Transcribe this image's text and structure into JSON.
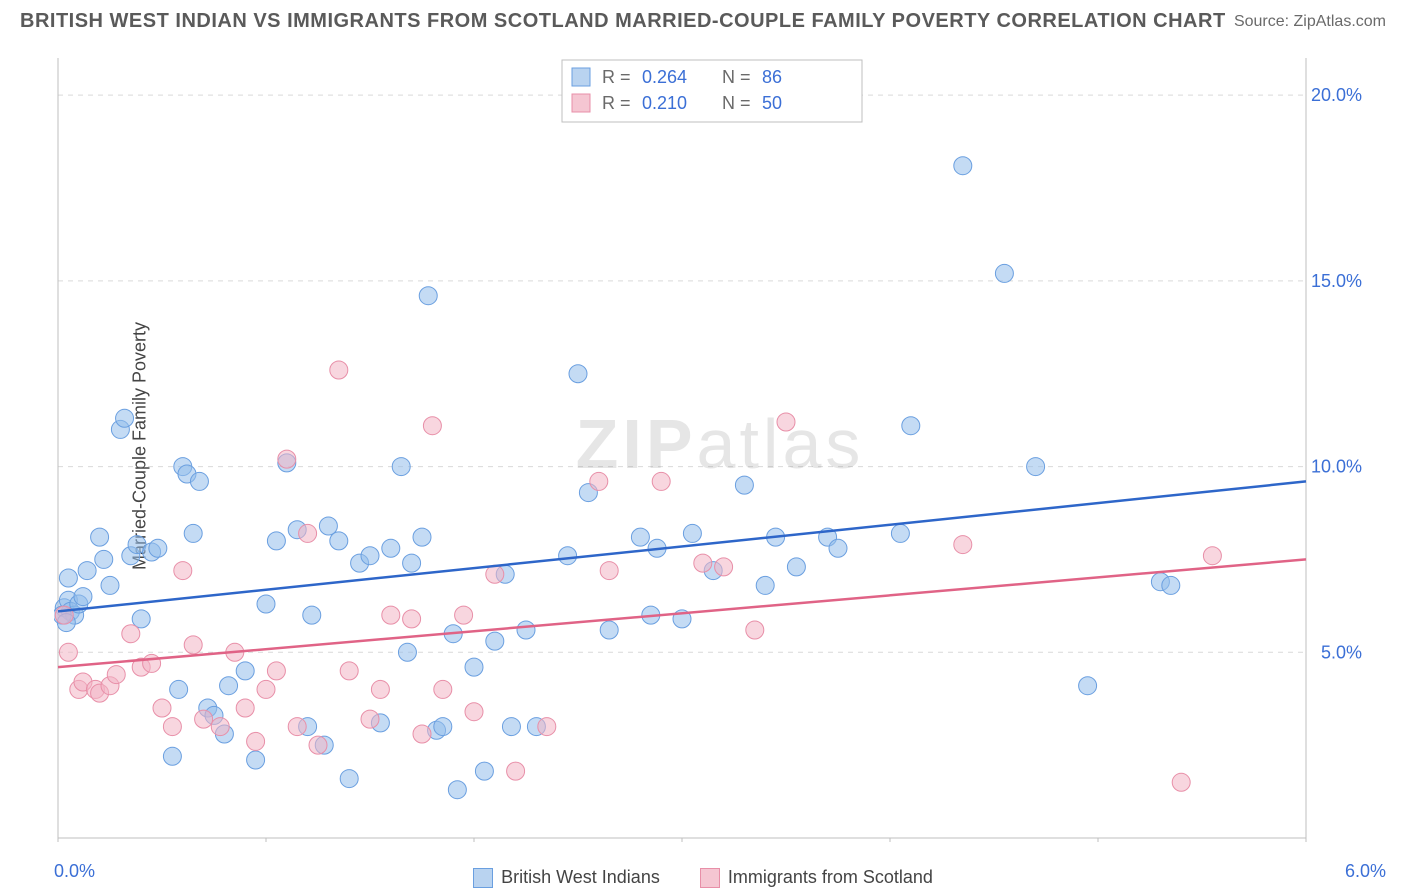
{
  "header": {
    "title": "BRITISH WEST INDIAN VS IMMIGRANTS FROM SCOTLAND MARRIED-COUPLE FAMILY POVERTY CORRELATION CHART",
    "source": "Source: ZipAtlas.com"
  },
  "watermark": "ZIPatlas",
  "chart": {
    "type": "scatter",
    "ylabel": "Married-Couple Family Poverty",
    "background_color": "#ffffff",
    "grid_color": "#d9d9d9",
    "axis_color": "#bfbfbf",
    "tick_color": "#bfbfbf",
    "xlim": [
      0,
      6
    ],
    "ylim": [
      0,
      21
    ],
    "x_start_label": "0.0%",
    "x_end_label": "6.0%",
    "y_ticks": [
      5,
      10,
      15,
      20
    ],
    "y_tick_labels": [
      "5.0%",
      "10.0%",
      "15.0%",
      "20.0%"
    ],
    "y_tick_color": "#3b6fd6",
    "y_tick_fontsize": 18,
    "x_label_color": "#3b6fd6",
    "x_minor_ticks": [
      0,
      1,
      2,
      3,
      4,
      5,
      6
    ],
    "stats_box": {
      "border_color": "#bfbfbf",
      "bg": "#ffffff",
      "rows": [
        {
          "swatch_fill": "#b9d3f0",
          "swatch_stroke": "#6a9fe0",
          "r_label": "R =",
          "r": "0.264",
          "n_label": "N =",
          "n": "86"
        },
        {
          "swatch_fill": "#f5c6d2",
          "swatch_stroke": "#e88fa8",
          "r_label": "R =",
          "r": "0.210",
          "n_label": "N =",
          "n": "50"
        }
      ],
      "label_color": "#6a6a6a",
      "value_color": "#3b6fd6",
      "fontsize": 18
    },
    "series": [
      {
        "name": "British West Indians",
        "marker_fill": "rgba(148,190,235,0.55)",
        "marker_stroke": "#6a9fe0",
        "marker_r": 9,
        "trend_color": "#2e66c9",
        "trend_width": 2.5,
        "trend": {
          "x0": 0,
          "y0": 6.1,
          "x1": 6,
          "y1": 9.6
        },
        "points": [
          [
            0.03,
            6.2
          ],
          [
            0.05,
            6.4
          ],
          [
            0.06,
            6.1
          ],
          [
            0.08,
            6.0
          ],
          [
            0.05,
            7.0
          ],
          [
            0.1,
            6.3
          ],
          [
            0.12,
            6.5
          ],
          [
            0.14,
            7.2
          ],
          [
            0.2,
            8.1
          ],
          [
            0.22,
            7.5
          ],
          [
            0.25,
            6.8
          ],
          [
            0.3,
            11.0
          ],
          [
            0.32,
            11.3
          ],
          [
            0.35,
            7.6
          ],
          [
            0.38,
            7.9
          ],
          [
            0.4,
            5.9
          ],
          [
            0.45,
            7.7
          ],
          [
            0.48,
            7.8
          ],
          [
            0.55,
            2.2
          ],
          [
            0.58,
            4.0
          ],
          [
            0.6,
            10.0
          ],
          [
            0.62,
            9.8
          ],
          [
            0.65,
            8.2
          ],
          [
            0.68,
            9.6
          ],
          [
            0.72,
            3.5
          ],
          [
            0.75,
            3.3
          ],
          [
            0.8,
            2.8
          ],
          [
            0.82,
            4.1
          ],
          [
            0.9,
            4.5
          ],
          [
            0.95,
            2.1
          ],
          [
            1.0,
            6.3
          ],
          [
            1.05,
            8.0
          ],
          [
            1.1,
            10.1
          ],
          [
            1.15,
            8.3
          ],
          [
            1.2,
            3.0
          ],
          [
            1.22,
            6.0
          ],
          [
            1.28,
            2.5
          ],
          [
            1.3,
            8.4
          ],
          [
            1.35,
            8.0
          ],
          [
            1.4,
            1.6
          ],
          [
            1.45,
            7.4
          ],
          [
            1.5,
            7.6
          ],
          [
            1.55,
            3.1
          ],
          [
            1.6,
            7.8
          ],
          [
            1.65,
            10.0
          ],
          [
            1.68,
            5.0
          ],
          [
            1.7,
            7.4
          ],
          [
            1.75,
            8.1
          ],
          [
            1.78,
            14.6
          ],
          [
            1.82,
            2.9
          ],
          [
            1.85,
            3.0
          ],
          [
            1.9,
            5.5
          ],
          [
            1.92,
            1.3
          ],
          [
            2.0,
            4.6
          ],
          [
            2.05,
            1.8
          ],
          [
            2.1,
            5.3
          ],
          [
            2.15,
            7.1
          ],
          [
            2.18,
            3.0
          ],
          [
            2.25,
            5.6
          ],
          [
            2.3,
            3.0
          ],
          [
            2.45,
            7.6
          ],
          [
            2.5,
            12.5
          ],
          [
            2.55,
            9.3
          ],
          [
            2.65,
            5.6
          ],
          [
            2.8,
            8.1
          ],
          [
            2.85,
            6.0
          ],
          [
            2.88,
            7.8
          ],
          [
            3.0,
            5.9
          ],
          [
            3.05,
            8.2
          ],
          [
            3.15,
            7.2
          ],
          [
            3.3,
            9.5
          ],
          [
            3.4,
            6.8
          ],
          [
            3.45,
            8.1
          ],
          [
            3.55,
            7.3
          ],
          [
            3.7,
            8.1
          ],
          [
            3.75,
            7.8
          ],
          [
            4.05,
            8.2
          ],
          [
            4.1,
            11.1
          ],
          [
            4.35,
            18.1
          ],
          [
            4.55,
            15.2
          ],
          [
            4.7,
            10.0
          ],
          [
            4.95,
            4.1
          ],
          [
            5.3,
            6.9
          ],
          [
            5.35,
            6.8
          ],
          [
            0.02,
            6.0
          ],
          [
            0.04,
            5.8
          ]
        ]
      },
      {
        "name": "Immigrants from Scotland",
        "marker_fill": "rgba(243,180,196,0.55)",
        "marker_stroke": "#e88fa8",
        "marker_r": 9,
        "trend_color": "#e06386",
        "trend_width": 2.5,
        "trend": {
          "x0": 0,
          "y0": 4.6,
          "x1": 6,
          "y1": 7.5
        },
        "points": [
          [
            0.03,
            6.0
          ],
          [
            0.05,
            5.0
          ],
          [
            0.1,
            4.0
          ],
          [
            0.12,
            4.2
          ],
          [
            0.18,
            4.0
          ],
          [
            0.2,
            3.9
          ],
          [
            0.25,
            4.1
          ],
          [
            0.28,
            4.4
          ],
          [
            0.35,
            5.5
          ],
          [
            0.4,
            4.6
          ],
          [
            0.45,
            4.7
          ],
          [
            0.5,
            3.5
          ],
          [
            0.55,
            3.0
          ],
          [
            0.6,
            7.2
          ],
          [
            0.65,
            5.2
          ],
          [
            0.7,
            3.2
          ],
          [
            0.78,
            3.0
          ],
          [
            0.85,
            5.0
          ],
          [
            0.9,
            3.5
          ],
          [
            0.95,
            2.6
          ],
          [
            1.0,
            4.0
          ],
          [
            1.05,
            4.5
          ],
          [
            1.1,
            10.2
          ],
          [
            1.15,
            3.0
          ],
          [
            1.2,
            8.2
          ],
          [
            1.25,
            2.5
          ],
          [
            1.35,
            12.6
          ],
          [
            1.4,
            4.5
          ],
          [
            1.5,
            3.2
          ],
          [
            1.55,
            4.0
          ],
          [
            1.6,
            6.0
          ],
          [
            1.7,
            5.9
          ],
          [
            1.75,
            2.8
          ],
          [
            1.8,
            11.1
          ],
          [
            1.85,
            4.0
          ],
          [
            1.95,
            6.0
          ],
          [
            2.0,
            3.4
          ],
          [
            2.1,
            7.1
          ],
          [
            2.2,
            1.8
          ],
          [
            2.35,
            3.0
          ],
          [
            2.6,
            9.6
          ],
          [
            2.65,
            7.2
          ],
          [
            2.9,
            9.6
          ],
          [
            3.1,
            7.4
          ],
          [
            3.2,
            7.3
          ],
          [
            3.35,
            5.6
          ],
          [
            3.5,
            11.2
          ],
          [
            4.35,
            7.9
          ],
          [
            5.4,
            1.5
          ],
          [
            5.55,
            7.6
          ]
        ]
      }
    ],
    "bottom_legend": [
      {
        "label": "British West Indians",
        "fill": "#b9d3f0",
        "stroke": "#6a9fe0"
      },
      {
        "label": "Immigrants from Scotland",
        "fill": "#f5c6d2",
        "stroke": "#e88fa8"
      }
    ]
  }
}
